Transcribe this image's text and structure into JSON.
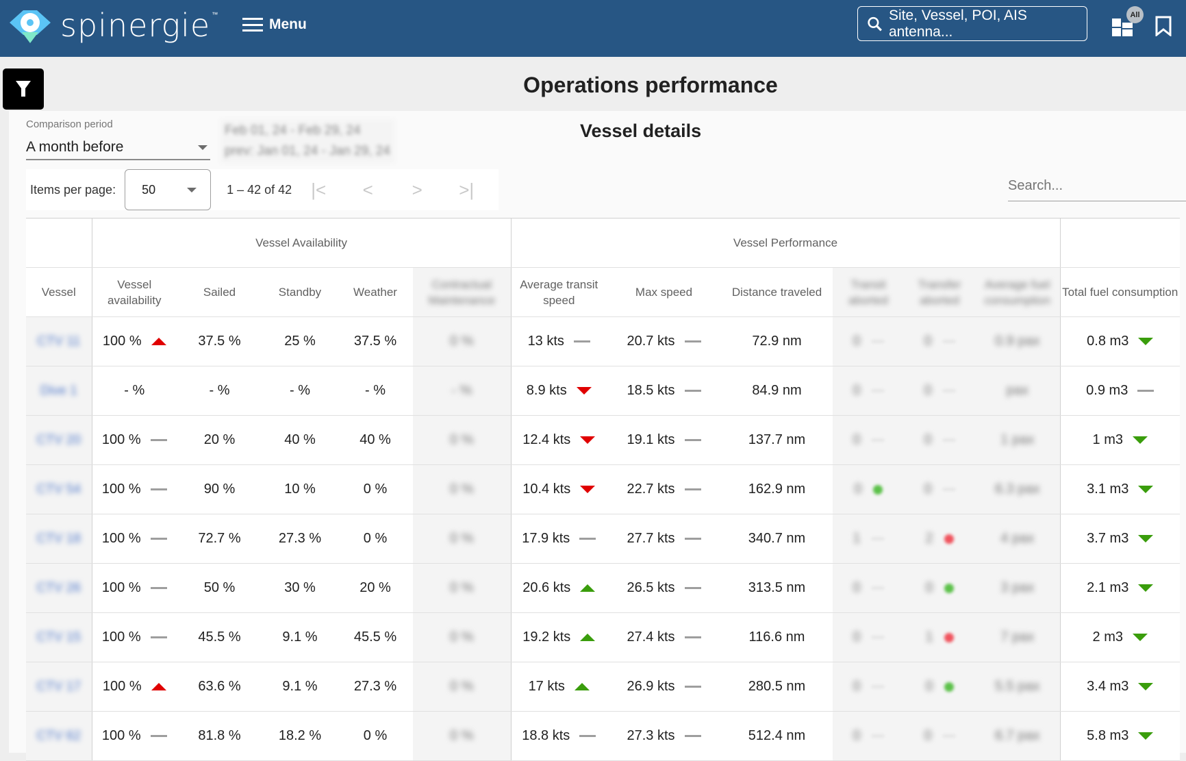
{
  "header": {
    "brand": "spinergie",
    "brand_tm": "™",
    "menu_label": "Menu",
    "search_placeholder": "Site, Vessel, POI, AIS antenna...",
    "dashboard_badge": "All"
  },
  "page": {
    "title": "Operations performance",
    "section_title": "Vessel details"
  },
  "comparison": {
    "label": "Comparison period",
    "value": "A month before",
    "dates_line1": "Feb 01, 24 - Feb 29, 24",
    "dates_line2": "prev: Jan 01, 24 - Jan 29, 24"
  },
  "pagination": {
    "items_per_page_label": "Items per page:",
    "items_per_page": "50",
    "range": "1 – 42 of 42",
    "first": "|<",
    "prev": "<",
    "next": ">",
    "last": ">|"
  },
  "table_search": {
    "placeholder": "Search..."
  },
  "table": {
    "groups": {
      "availability": "Vessel Availability",
      "performance": "Vessel Performance"
    },
    "columns": {
      "vessel": "Vessel",
      "vessel_availability": "Vessel availability",
      "sailed": "Sailed",
      "standby": "Standby",
      "weather": "Weather",
      "contractual_maintenance": "Contractual Maintenance",
      "avg_transit_speed": "Average transit speed",
      "max_speed": "Max speed",
      "distance_traveled": "Distance traveled",
      "transit_aborted": "Transit aborted",
      "transfer_aborted": "Transfer aborted",
      "avg_fuel": "Average fuel consumption",
      "total_fuel": "Total fuel consumption"
    },
    "rows": [
      {
        "vessel": "CTV 11",
        "avail": "100 %",
        "avail_ind": "up-red",
        "sailed": "37.5 %",
        "standby": "25 %",
        "weather": "37.5 %",
        "maint": "0 %",
        "avg_speed": "13 kts",
        "avg_speed_ind": "flat",
        "max_speed": "20.7 kts",
        "max_speed_ind": "flat",
        "distance": "72.9 nm",
        "t_abort": "0",
        "t_abort_ind": "flat",
        "tr_abort": "0",
        "tr_abort_ind": "flat",
        "avg_fuel": "0.9 pax",
        "total_fuel": "0.8 m3",
        "total_fuel_ind": "down-green"
      },
      {
        "vessel": "Dive 1",
        "avail": "- %",
        "avail_ind": "none",
        "sailed": "- %",
        "standby": "- %",
        "weather": "- %",
        "maint": "- %",
        "avg_speed": "8.9 kts",
        "avg_speed_ind": "down-red",
        "max_speed": "18.5 kts",
        "max_speed_ind": "flat",
        "distance": "84.9 nm",
        "t_abort": "0",
        "t_abort_ind": "flat",
        "tr_abort": "0",
        "tr_abort_ind": "flat",
        "avg_fuel": "pax",
        "total_fuel": "0.9 m3",
        "total_fuel_ind": "flat"
      },
      {
        "vessel": "CTV 20",
        "avail": "100 %",
        "avail_ind": "flat",
        "sailed": "20 %",
        "standby": "40 %",
        "weather": "40 %",
        "maint": "0 %",
        "avg_speed": "12.4 kts",
        "avg_speed_ind": "down-red",
        "max_speed": "19.1 kts",
        "max_speed_ind": "flat",
        "distance": "137.7 nm",
        "t_abort": "0",
        "t_abort_ind": "flat",
        "tr_abort": "0",
        "tr_abort_ind": "flat",
        "avg_fuel": "1 pax",
        "total_fuel": "1 m3",
        "total_fuel_ind": "down-green"
      },
      {
        "vessel": "CTV 54",
        "avail": "100 %",
        "avail_ind": "flat",
        "sailed": "90 %",
        "standby": "10 %",
        "weather": "0 %",
        "maint": "0 %",
        "avg_speed": "10.4 kts",
        "avg_speed_ind": "down-red",
        "max_speed": "22.7 kts",
        "max_speed_ind": "flat",
        "distance": "162.9 nm",
        "t_abort": "0",
        "t_abort_ind": "green",
        "tr_abort": "0",
        "tr_abort_ind": "flat",
        "avg_fuel": "6.3 pax",
        "total_fuel": "3.1 m3",
        "total_fuel_ind": "down-green"
      },
      {
        "vessel": "CTV 18",
        "avail": "100 %",
        "avail_ind": "flat",
        "sailed": "72.7 %",
        "standby": "27.3 %",
        "weather": "0 %",
        "maint": "0 %",
        "avg_speed": "17.9 kts",
        "avg_speed_ind": "flat",
        "max_speed": "27.7 kts",
        "max_speed_ind": "flat",
        "distance": "340.7 nm",
        "t_abort": "1",
        "t_abort_ind": "flat",
        "tr_abort": "2",
        "tr_abort_ind": "red",
        "avg_fuel": "4 pax",
        "total_fuel": "3.7 m3",
        "total_fuel_ind": "down-green"
      },
      {
        "vessel": "CTV 26",
        "avail": "100 %",
        "avail_ind": "flat",
        "sailed": "50 %",
        "standby": "30 %",
        "weather": "20 %",
        "maint": "0 %",
        "avg_speed": "20.6 kts",
        "avg_speed_ind": "up-green",
        "max_speed": "26.5 kts",
        "max_speed_ind": "flat",
        "distance": "313.5 nm",
        "t_abort": "0",
        "t_abort_ind": "flat",
        "tr_abort": "0",
        "tr_abort_ind": "green",
        "avg_fuel": "3 pax",
        "total_fuel": "2.1 m3",
        "total_fuel_ind": "down-green"
      },
      {
        "vessel": "CTV 15",
        "avail": "100 %",
        "avail_ind": "flat",
        "sailed": "45.5 %",
        "standby": "9.1 %",
        "weather": "45.5 %",
        "maint": "0 %",
        "avg_speed": "19.2 kts",
        "avg_speed_ind": "up-green",
        "max_speed": "27.4 kts",
        "max_speed_ind": "flat",
        "distance": "116.6 nm",
        "t_abort": "0",
        "t_abort_ind": "flat",
        "tr_abort": "1",
        "tr_abort_ind": "red",
        "avg_fuel": "7 pax",
        "total_fuel": "2 m3",
        "total_fuel_ind": "down-green"
      },
      {
        "vessel": "CTV 17",
        "avail": "100 %",
        "avail_ind": "up-red",
        "sailed": "63.6 %",
        "standby": "9.1 %",
        "weather": "27.3 %",
        "maint": "0 %",
        "avg_speed": "17 kts",
        "avg_speed_ind": "up-green",
        "max_speed": "26.9 kts",
        "max_speed_ind": "flat",
        "distance": "280.5 nm",
        "t_abort": "0",
        "t_abort_ind": "flat",
        "tr_abort": "0",
        "tr_abort_ind": "green",
        "avg_fuel": "5.5 pax",
        "total_fuel": "3.4 m3",
        "total_fuel_ind": "down-green"
      },
      {
        "vessel": "CTV 62",
        "avail": "100 %",
        "avail_ind": "flat",
        "sailed": "81.8 %",
        "standby": "18.2 %",
        "weather": "0 %",
        "maint": "0 %",
        "avg_speed": "18.8 kts",
        "avg_speed_ind": "flat",
        "max_speed": "27.3 kts",
        "max_speed_ind": "flat",
        "distance": "512.4 nm",
        "t_abort": "0",
        "t_abort_ind": "flat",
        "tr_abort": "0",
        "tr_abort_ind": "flat",
        "avg_fuel": "6.7 pax",
        "total_fuel": "5.8 m3",
        "total_fuel_ind": "down-green"
      }
    ]
  },
  "colors": {
    "header_bg": "#275684",
    "trend_up_bad": "#e00000",
    "trend_good": "#3a9d0c",
    "neutral": "#9e9e9e"
  }
}
